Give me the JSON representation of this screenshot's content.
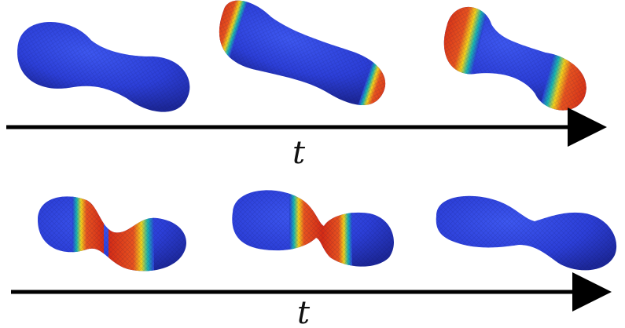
{
  "timeline_top": {
    "label": "t"
  },
  "timeline_bottom": {
    "label": "t"
  },
  "colors": {
    "cold": "#2c3fd8",
    "cold_dark": "#1f2aa6",
    "warm": "#e23a1e",
    "mid": "#f3d21b",
    "teal": "#19b6b0",
    "arrow": "#000000"
  },
  "frames_top": [
    {
      "name": "frame-1",
      "hot_ends": false
    },
    {
      "name": "frame-2",
      "hot_ends": true
    },
    {
      "name": "frame-3",
      "hot_ends": true
    }
  ],
  "frames_bottom": [
    {
      "name": "frame-4",
      "hot_neck": true
    },
    {
      "name": "frame-5",
      "hot_neck": true
    },
    {
      "name": "frame-6",
      "hot_neck": false
    }
  ]
}
